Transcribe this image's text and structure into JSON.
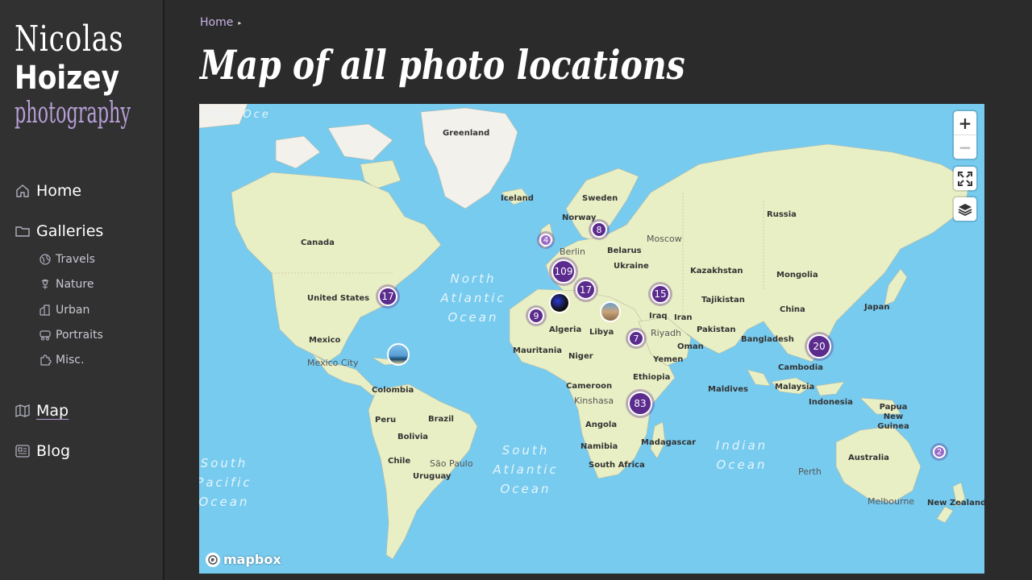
{
  "logo": {
    "line1": "Nicolas",
    "line2": "Hoizey",
    "line3": "photography"
  },
  "nav": {
    "home": "Home",
    "galleries": "Galleries",
    "sub": [
      "Travels",
      "Nature",
      "Urban",
      "Portraits",
      "Misc."
    ],
    "map": "Map",
    "blog": "Blog"
  },
  "breadcrumb": {
    "home": "Home",
    "sep": "▸"
  },
  "page_title": "Map of all photo locations",
  "map": {
    "countries": {
      "greenland": "Greenland",
      "iceland": "Iceland",
      "sweden": "Sweden",
      "norway": "Norway",
      "russia": "Russia",
      "belarus": "Belarus",
      "ukraine": "Ukraine",
      "kazakhstan": "Kazakhstan",
      "mongolia": "Mongolia",
      "canada": "Canada",
      "united_states": "United States",
      "mexico": "Mexico",
      "colombia": "Colombia",
      "peru": "Peru",
      "brazil": "Brazil",
      "bolivia": "Bolivia",
      "chile": "Chile",
      "uruguay": "Uruguay",
      "algeria": "Algeria",
      "libya": "Libya",
      "mauritania": "Mauritania",
      "niger": "Niger",
      "ethiopia": "Ethiopia",
      "cameroon": "Cameroon",
      "angola": "Angola",
      "namibia": "Namibia",
      "south_africa": "South Africa",
      "madagascar": "Madagascar",
      "iraq": "Iraq",
      "iran": "Iran",
      "yemen": "Yemen",
      "oman": "Oman",
      "pakistan": "Pakistan",
      "tajikistan": "Tajikistan",
      "china": "China",
      "japan": "Japan",
      "bangladesh": "Bangladesh",
      "cambodia": "Cambodia",
      "malaysia": "Malaysia",
      "indonesia": "Indonesia",
      "maldives": "Maldives",
      "png": "Papua New Guinea",
      "australia": "Australia",
      "new_zealand": "New Zealand"
    },
    "cities": {
      "moscow": "Moscow",
      "berlin": "Berlin",
      "riyadh": "Riyadh",
      "kinshasa": "Kinshasa",
      "mexico_city": "Mexico City",
      "sao_paulo": "São Paulo",
      "perth": "Perth",
      "melbourne": "Melbourne"
    },
    "oceans": {
      "north_atlantic": "North Atlantic Ocean",
      "south_atlantic": "South Atlantic Ocean",
      "indian": "Indian Ocean",
      "south_pacific": "South Pacific Ocean",
      "arctic": "Arctic Oce"
    },
    "clusters": [
      "17",
      "4",
      "8",
      "109",
      "17",
      "15",
      "9",
      "7",
      "20",
      "83",
      "2"
    ],
    "controls": {
      "zoom_in": "+",
      "zoom_out": "−"
    },
    "attribution": "mapbox"
  },
  "colors": {
    "accent": "#b79fd6",
    "cluster": "#5b2b8d",
    "water": "#77cbef",
    "land": "#e9efc4",
    "sidebar": "#313131",
    "background": "#2b2b2b"
  }
}
